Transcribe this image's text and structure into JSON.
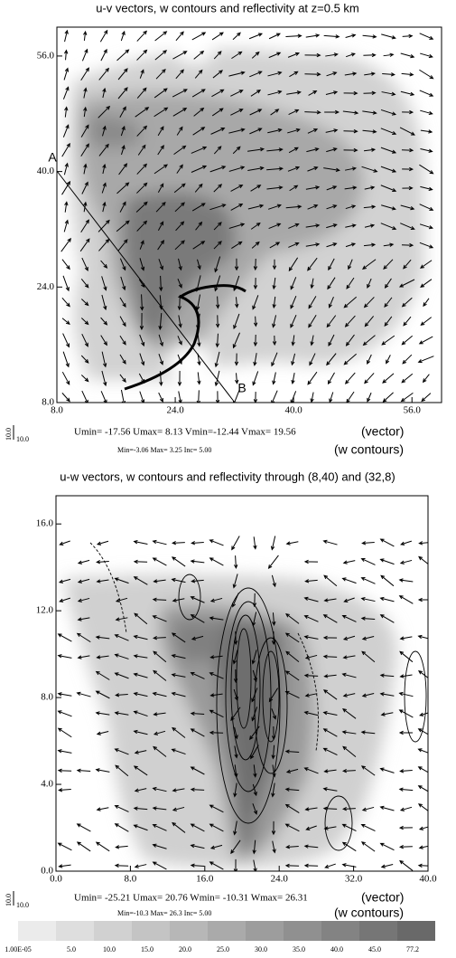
{
  "chart_data": [
    {
      "type": "vector",
      "title": "u-v vectors, w contours and reflectivity at z=0.5 km",
      "xlim": [
        8,
        60
      ],
      "ylim": [
        8,
        60
      ],
      "xticks": [
        {
          "value": 8,
          "label": "8.0"
        },
        {
          "value": 24,
          "label": "24.0"
        },
        {
          "value": 40,
          "label": "40.0"
        },
        {
          "value": 56,
          "label": "56.0"
        }
      ],
      "yticks": [
        {
          "value": 8,
          "label": "8.0"
        },
        {
          "value": 24,
          "label": "24.0"
        },
        {
          "value": 40,
          "label": "40.0"
        },
        {
          "value": 56,
          "label": "56.0"
        }
      ],
      "annotations": [
        "A",
        "B"
      ],
      "ref_vector": "10.0",
      "vector_stats": "Umin= -17.56 Umax= 8.13  Vmin=-12.44  Vmax= 19.56",
      "vector_note": "(vector)",
      "contour_stats": "Min=-3.06      Max=  3.25      Inc=  5.00",
      "contour_note": "(w contours)"
    },
    {
      "type": "vector",
      "title": "u-w vectors, w contours and reflectivity through (8,40) and (32,8)",
      "xlim": [
        0,
        40
      ],
      "ylim": [
        0,
        17.3
      ],
      "xticks": [
        {
          "value": 0,
          "label": "0.0"
        },
        {
          "value": 8,
          "label": "8.0"
        },
        {
          "value": 16,
          "label": "16.0"
        },
        {
          "value": 24,
          "label": "24.0"
        },
        {
          "value": 32,
          "label": "32.0"
        },
        {
          "value": 40,
          "label": "40.0"
        }
      ],
      "yticks": [
        {
          "value": 0,
          "label": "0.0"
        },
        {
          "value": 4,
          "label": "4.0"
        },
        {
          "value": 8,
          "label": "8.0"
        },
        {
          "value": 12,
          "label": "12.0"
        },
        {
          "value": 16,
          "label": "16.0"
        }
      ],
      "ref_vector": "10.0",
      "vector_stats": "Umin= -25.21 Umax= 20.76  Wmin= -10.31  Wmax= 26.31",
      "vector_note": "(vector)",
      "contour_stats": "Min=-10.3      Max=  26.3      Inc=  5.00",
      "contour_note": "(w contours)",
      "colorbar": [
        {
          "value": 1e-05,
          "label": "1.00E-05"
        },
        {
          "value": 5,
          "label": "5.0"
        },
        {
          "value": 10,
          "label": "10.0"
        },
        {
          "value": 15,
          "label": "15.0"
        },
        {
          "value": 20,
          "label": "20.0"
        },
        {
          "value": 25,
          "label": "25.0"
        },
        {
          "value": 30,
          "label": "30.0"
        },
        {
          "value": 35,
          "label": "35.0"
        },
        {
          "value": 40,
          "label": "40.0"
        },
        {
          "value": 45,
          "label": "45.0"
        },
        77.2
      ]
    }
  ]
}
